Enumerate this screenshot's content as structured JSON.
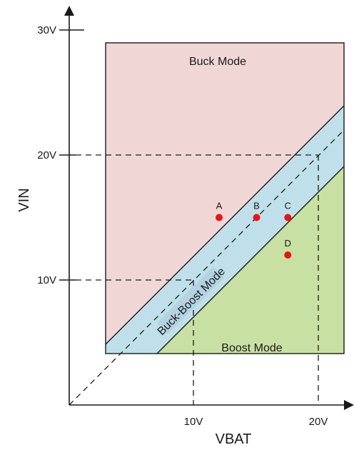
{
  "axes": {
    "x_title": "VBAT",
    "y_title": "VIN",
    "x_ticks": [
      "10V",
      "20V"
    ],
    "y_ticks": [
      "30V",
      "20V",
      "10V"
    ]
  },
  "regions": {
    "buck": {
      "label": "Buck Mode",
      "color": "#f0d7d5"
    },
    "buck_boost": {
      "label": "Buck-Boost Mode",
      "color": "#bfe0ea"
    },
    "boost": {
      "label": "Boost Mode",
      "color": "#c9e0a3"
    }
  },
  "points": [
    {
      "label": "A",
      "vbat": 12,
      "vin": 15
    },
    {
      "label": "B",
      "vbat": 15,
      "vin": 15
    },
    {
      "label": "C",
      "vbat": 17.5,
      "vin": 15
    },
    {
      "label": "D",
      "vbat": 17.5,
      "vin": 12
    }
  ],
  "colors": {
    "point": "#ee1111",
    "line": "#1a1a1a"
  }
}
